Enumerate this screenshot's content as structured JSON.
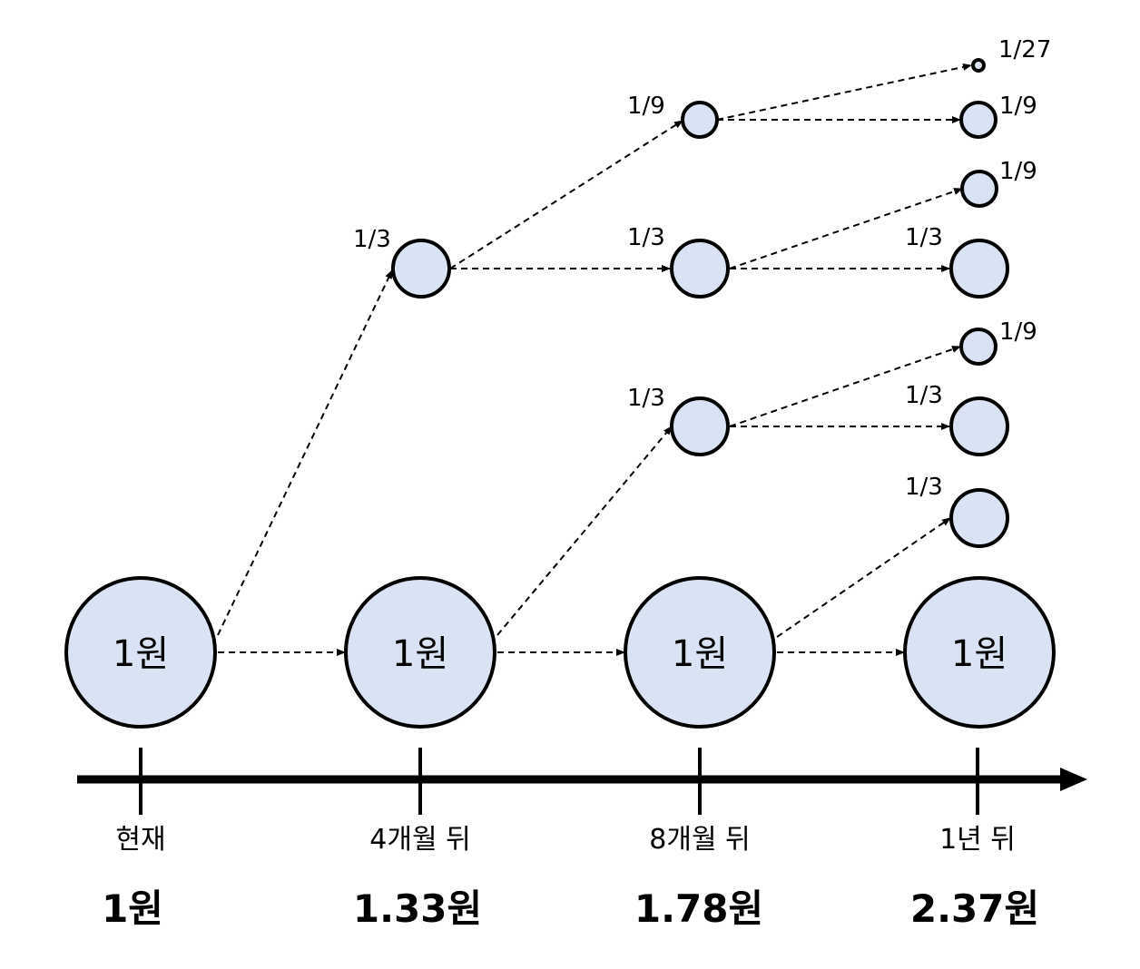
{
  "timeline": {
    "periods": [
      {
        "label": "현재",
        "value": "1원"
      },
      {
        "label": "4개월 뒤",
        "value": "1.33원"
      },
      {
        "label": "8개월 뒤",
        "value": "1.78원"
      },
      {
        "label": "1년 뒤",
        "value": "2.37원"
      }
    ]
  },
  "base_node_label": "1원",
  "fractions": {
    "f1": "1/3",
    "f2": "1/9",
    "f3": "1/3",
    "f4": "1/3",
    "f5": "1/27",
    "f6": "1/9",
    "f7": "1/9",
    "f8": "1/3",
    "f9": "1/9",
    "f10": "1/3",
    "f11": "1/3"
  },
  "colors": {
    "node_fill": "#dae3f3",
    "stroke": "#000000"
  }
}
